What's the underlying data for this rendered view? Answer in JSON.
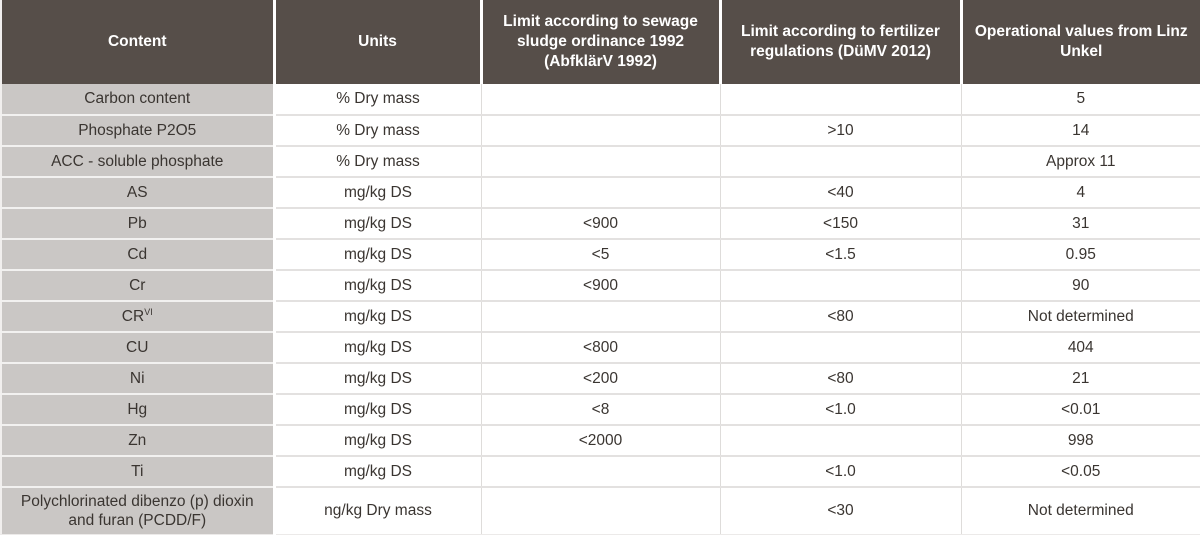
{
  "table": {
    "columns": [
      {
        "key": "content",
        "label": "Content"
      },
      {
        "key": "units",
        "label": "Units"
      },
      {
        "key": "limit_sewage",
        "label": "Limit according to sewage sludge ordinance 1992 (AbfklärV 1992)"
      },
      {
        "key": "limit_fertilizer",
        "label": "Limit according to fertilizer regulations (DüMV 2012)"
      },
      {
        "key": "operational",
        "label": "Operational values from Linz Unkel"
      }
    ],
    "rows": [
      {
        "content": "Carbon content",
        "units": "% Dry mass",
        "limit_sewage": "",
        "limit_fertilizer": "",
        "operational": "5"
      },
      {
        "content": "Phosphate P2O5",
        "units": "% Dry mass",
        "limit_sewage": "",
        "limit_fertilizer": ">10",
        "operational": "14"
      },
      {
        "content": "ACC - soluble phosphate",
        "units": "% Dry mass",
        "limit_sewage": "",
        "limit_fertilizer": "",
        "operational": "Approx 11"
      },
      {
        "content": "AS",
        "units": "mg/kg DS",
        "limit_sewage": "",
        "limit_fertilizer": "<40",
        "operational": "4"
      },
      {
        "content": "Pb",
        "units": "mg/kg DS",
        "limit_sewage": "<900",
        "limit_fertilizer": "<150",
        "operational": "31"
      },
      {
        "content": "Cd",
        "units": "mg/kg DS",
        "limit_sewage": "<5",
        "limit_fertilizer": "<1.5",
        "operational": "0.95"
      },
      {
        "content": "Cr",
        "units": "mg/kg DS",
        "limit_sewage": "<900",
        "limit_fertilizer": "",
        "operational": "90"
      },
      {
        "content": "CR",
        "content_sup": "VI",
        "units": "mg/kg DS",
        "limit_sewage": "",
        "limit_fertilizer": "<80",
        "operational": "Not determined"
      },
      {
        "content": "CU",
        "units": "mg/kg DS",
        "limit_sewage": "<800",
        "limit_fertilizer": "",
        "operational": "404"
      },
      {
        "content": "Ni",
        "units": "mg/kg DS",
        "limit_sewage": "<200",
        "limit_fertilizer": "<80",
        "operational": "21"
      },
      {
        "content": "Hg",
        "units": "mg/kg DS",
        "limit_sewage": "<8",
        "limit_fertilizer": "<1.0",
        "operational": "<0.01"
      },
      {
        "content": "Zn",
        "units": "mg/kg DS",
        "limit_sewage": "<2000",
        "limit_fertilizer": "",
        "operational": "998"
      },
      {
        "content": "Ti",
        "units": "mg/kg DS",
        "limit_sewage": "",
        "limit_fertilizer": "<1.0",
        "operational": "<0.05"
      },
      {
        "content": "Polychlorinated dibenzo (p) dioxin and furan (PCDD/F)",
        "units": "ng/kg Dry mass",
        "limit_sewage": "",
        "limit_fertilizer": "<30",
        "operational": "Not determined"
      }
    ]
  },
  "colors": {
    "header_bg": "#564e49",
    "header_text": "#ffffff",
    "label_bg": "#cac7c5",
    "body_text": "#3a3531",
    "row_border": "#e3e1e0",
    "col_border": "#dedcda"
  }
}
